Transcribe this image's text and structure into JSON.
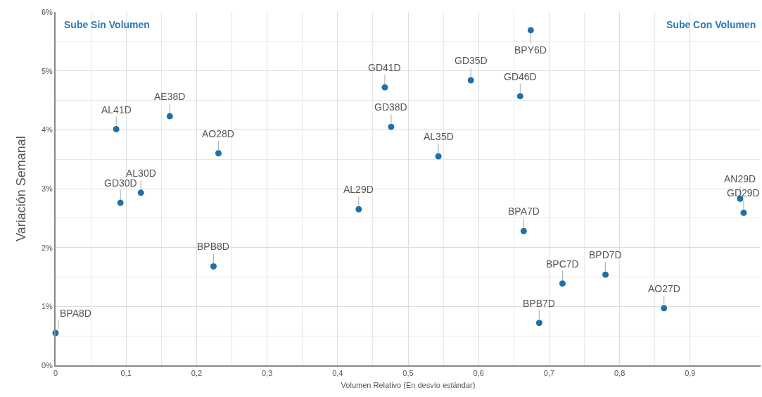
{
  "chart_data": {
    "type": "scatter",
    "xlabel": "Volumen Relativo (En desvío estándar)",
    "ylabel": "Variación Semanal",
    "x": [
      0.0,
      0.086,
      0.162,
      0.231,
      0.121,
      0.092,
      0.224,
      0.43,
      0.467,
      0.476,
      0.589,
      0.543,
      0.674,
      0.659,
      0.664,
      0.719,
      0.78,
      0.686,
      0.863,
      0.971,
      0.976
    ],
    "series": [
      {
        "color": "#1f6fa8",
        "values": [
          0.55,
          4.01,
          4.23,
          3.6,
          2.93,
          2.76,
          1.68,
          2.65,
          4.72,
          4.05,
          4.84,
          3.55,
          5.69,
          4.57,
          2.28,
          1.39,
          1.54,
          0.72,
          0.97,
          2.83,
          2.59
        ]
      }
    ],
    "xlim": [
      0,
      1
    ],
    "xticks": [
      0,
      {
        "value": 0.1,
        "label": "0,1"
      },
      {
        "value": 0.2,
        "label": "0,2"
      },
      {
        "value": 0.3,
        "label": "0,3"
      },
      {
        "value": 0.4,
        "label": "0,4"
      },
      {
        "value": 0.5,
        "label": "0,5"
      },
      {
        "value": 0.6,
        "label": "0,6"
      },
      {
        "value": 0.7,
        "label": "0,7"
      },
      {
        "value": 0.8,
        "label": "0,8"
      },
      {
        "value": 0.9,
        "label": "0,9"
      }
    ],
    "ylim": [
      0,
      6
    ],
    "yticks": [
      {
        "value": 0,
        "label": "0%"
      },
      {
        "value": 1,
        "label": "1%"
      },
      {
        "value": 2,
        "label": "2%"
      },
      {
        "value": 3,
        "label": "3%"
      },
      {
        "value": 4,
        "label": "4%"
      },
      {
        "value": 5,
        "label": "5%"
      },
      {
        "value": 6,
        "label": "6%"
      }
    ],
    "grid": true,
    "marker": "circle",
    "annotations": [
      "Sube Sin Volumen",
      "Sube Con Volumen",
      {
        "text": "BPA8D",
        "x": 0.0,
        "y": 0.55
      },
      {
        "text": "AL41D",
        "x": 0.086,
        "y": 4.01
      },
      {
        "text": "AE38D",
        "x": 0.162,
        "y": 4.23
      },
      {
        "text": "AO28D",
        "x": 0.231,
        "y": 3.6
      },
      {
        "text": "AL30D",
        "x": 0.121,
        "y": 2.93
      },
      {
        "text": "GD30D",
        "x": 0.092,
        "y": 2.76
      },
      {
        "text": "BPB8D",
        "x": 0.224,
        "y": 1.68
      },
      {
        "text": "AL29D",
        "x": 0.43,
        "y": 2.65
      },
      {
        "text": "GD41D",
        "x": 0.467,
        "y": 4.72
      },
      {
        "text": "GD38D",
        "x": 0.476,
        "y": 4.05
      },
      {
        "text": "GD35D",
        "x": 0.589,
        "y": 4.84
      },
      {
        "text": "AL35D",
        "x": 0.543,
        "y": 3.55
      },
      {
        "text": "BPY6D",
        "x": 0.674,
        "y": 5.69
      },
      {
        "text": "GD46D",
        "x": 0.659,
        "y": 4.57
      },
      {
        "text": "BPA7D",
        "x": 0.664,
        "y": 2.28
      },
      {
        "text": "BPC7D",
        "x": 0.719,
        "y": 1.39
      },
      {
        "text": "BPD7D",
        "x": 0.78,
        "y": 1.54
      },
      {
        "text": "BPB7D",
        "x": 0.686,
        "y": 0.72
      },
      {
        "text": "AO27D",
        "x": 0.863,
        "y": 0.97
      },
      {
        "text": "AN29D",
        "x": 0.971,
        "y": 2.83
      },
      {
        "text": "GD29D",
        "x": 0.976,
        "y": 2.59
      }
    ]
  }
}
